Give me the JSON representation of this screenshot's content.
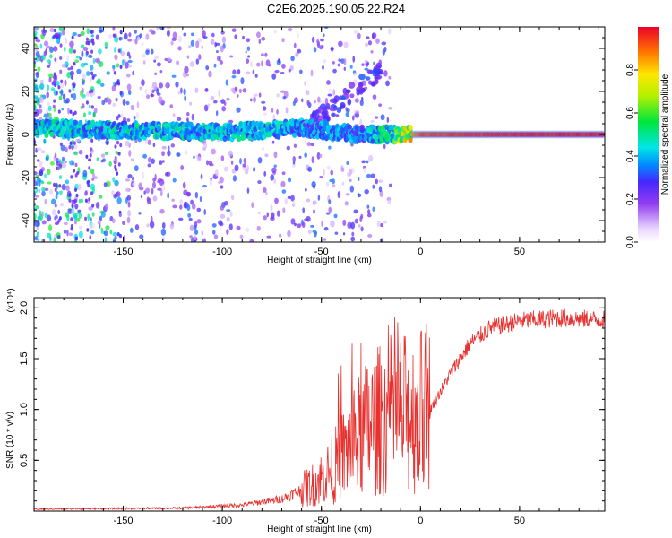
{
  "title": "C2E6.2025.190.05.22.R24",
  "chart_data": [
    {
      "type": "heatmap",
      "xlabel": "Height of straight line (km)",
      "ylabel": "Frequency (Hz)",
      "xlim": [
        -195,
        93
      ],
      "ylim": [
        -50,
        50
      ],
      "xticks": [
        -150,
        -100,
        -50,
        0,
        50
      ],
      "yticks": [
        -40,
        -20,
        0,
        20,
        40
      ],
      "colorbar": {
        "label": "Normalized spectral amplitude",
        "range": [
          0.0,
          1.0
        ],
        "ticks": [
          "0.0",
          "0.2",
          "0.4",
          "0.6",
          "0.8"
        ]
      },
      "ridge": {
        "description_points": [
          {
            "x": -190,
            "freq": 3,
            "amp": 0.45
          },
          {
            "x": -150,
            "freq": 2,
            "amp": 0.45
          },
          {
            "x": -100,
            "freq": 1,
            "amp": 0.45
          },
          {
            "x": -60,
            "freq": 3,
            "amp": 0.4
          },
          {
            "x": -30,
            "freq": 0,
            "amp": 0.35
          },
          {
            "x": -15,
            "freq": 0,
            "amp": 0.55
          },
          {
            "x": 0,
            "freq": 0,
            "amp": 0.9
          },
          {
            "x": 50,
            "freq": 0,
            "amp": 0.95
          },
          {
            "x": 93,
            "freq": 0,
            "amp": 0.95
          }
        ]
      }
    },
    {
      "type": "line",
      "xlabel": "Height of straight line (km)",
      "ylabel": "SNR (10 * v/v)",
      "y_multiplier": "(x10⁴)",
      "xlim": [
        -195,
        93
      ],
      "ylim": [
        0,
        2.1
      ],
      "xticks": [
        -150,
        -100,
        -50,
        0,
        50
      ],
      "yticks": [
        "0.5",
        "1.0",
        "1.5",
        "2.0"
      ],
      "series": [
        {
          "color": "#e8312e",
          "envelope": [
            {
              "x": -195,
              "y": 0.02
            },
            {
              "x": -120,
              "y": 0.03
            },
            {
              "x": -90,
              "y": 0.06
            },
            {
              "x": -70,
              "y": 0.12
            },
            {
              "x": -55,
              "y": 0.25
            },
            {
              "x": -45,
              "y": 0.4
            },
            {
              "x": -35,
              "y": 0.65
            },
            {
              "x": -25,
              "y": 0.85
            },
            {
              "x": -15,
              "y": 0.95
            },
            {
              "x": -5,
              "y": 0.95
            },
            {
              "x": 5,
              "y": 1.0
            },
            {
              "x": 15,
              "y": 1.35
            },
            {
              "x": 25,
              "y": 1.65
            },
            {
              "x": 35,
              "y": 1.8
            },
            {
              "x": 50,
              "y": 1.87
            },
            {
              "x": 70,
              "y": 1.9
            },
            {
              "x": 93,
              "y": 1.88
            }
          ]
        }
      ]
    }
  ]
}
